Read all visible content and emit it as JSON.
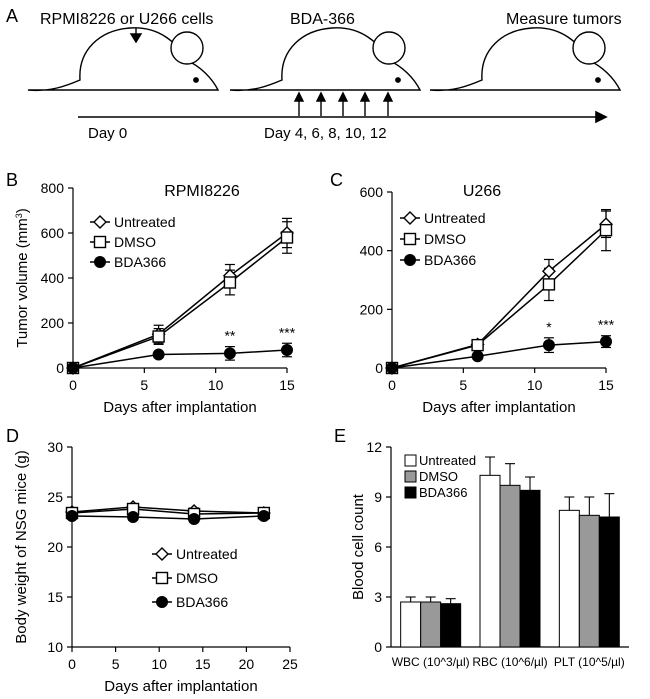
{
  "panel_labels": {
    "a": "A",
    "b": "B",
    "c": "C",
    "d": "D",
    "e": "E"
  },
  "schematic": {
    "step1": "RPMI8226 or U266 cells",
    "step2": "BDA-366",
    "step3": "Measure tumors",
    "day0": "Day 0",
    "injection_days": "Day 4, 6, 8, 10, 12"
  },
  "chart_data": [
    {
      "id": "B",
      "type": "line",
      "title": "RPMI8226",
      "xlabel": "Days after implantation",
      "ylabel": "Tumor volume (mm³)",
      "xlim": [
        0,
        15
      ],
      "ylim": [
        0,
        800
      ],
      "xticks": [
        0,
        5,
        10,
        15
      ],
      "yticks": [
        0,
        200,
        400,
        600,
        800
      ],
      "x": [
        0,
        6,
        11,
        15
      ],
      "series": [
        {
          "name": "Untreated",
          "marker": "diamond-open",
          "values": [
            0,
            150,
            410,
            600
          ],
          "errors": [
            0,
            40,
            50,
            65
          ]
        },
        {
          "name": "DMSO",
          "marker": "square-open",
          "values": [
            0,
            140,
            380,
            580
          ],
          "errors": [
            0,
            35,
            55,
            70
          ]
        },
        {
          "name": "BDA366",
          "marker": "circle-filled",
          "values": [
            0,
            60,
            65,
            80
          ],
          "errors": [
            0,
            10,
            30,
            30
          ]
        }
      ],
      "annotations": [
        {
          "x": 11,
          "text": "**"
        },
        {
          "x": 15,
          "text": "***"
        }
      ]
    },
    {
      "id": "C",
      "type": "line",
      "title": "U266",
      "xlabel": "Days after implantation",
      "ylabel": "",
      "xlim": [
        0,
        15
      ],
      "ylim": [
        0,
        600
      ],
      "xticks": [
        0,
        5,
        10,
        15
      ],
      "yticks": [
        0,
        200,
        400,
        600
      ],
      "x": [
        0,
        6,
        11,
        15
      ],
      "series": [
        {
          "name": "Untreated",
          "marker": "diamond-open",
          "values": [
            0,
            80,
            330,
            490
          ],
          "errors": [
            0,
            15,
            40,
            45
          ]
        },
        {
          "name": "DMSO",
          "marker": "square-open",
          "values": [
            0,
            78,
            285,
            470
          ],
          "errors": [
            0,
            15,
            55,
            70
          ]
        },
        {
          "name": "BDA366",
          "marker": "circle-filled",
          "values": [
            0,
            40,
            78,
            90
          ],
          "errors": [
            0,
            10,
            25,
            20
          ]
        }
      ],
      "annotations": [
        {
          "x": 11,
          "text": "*"
        },
        {
          "x": 15,
          "text": "***"
        }
      ]
    },
    {
      "id": "D",
      "type": "line",
      "title": "",
      "xlabel": "Days after implantation",
      "ylabel": "Body weight of NSG mice (g)",
      "xlim": [
        0,
        25
      ],
      "ylim": [
        10,
        30
      ],
      "xticks": [
        0,
        5,
        10,
        15,
        20,
        25
      ],
      "yticks": [
        10,
        15,
        20,
        25,
        30
      ],
      "x": [
        0,
        7,
        14,
        22
      ],
      "series": [
        {
          "name": "Untreated",
          "marker": "diamond-open",
          "values": [
            23.5,
            24.0,
            23.6,
            23.4
          ],
          "errors": [
            0.3,
            0.3,
            0.3,
            0.3
          ]
        },
        {
          "name": "DMSO",
          "marker": "square-open",
          "values": [
            23.4,
            23.8,
            23.3,
            23.4
          ],
          "errors": [
            0.3,
            0.3,
            0.3,
            0.3
          ]
        },
        {
          "name": "BDA366",
          "marker": "circle-filled",
          "values": [
            23.1,
            23.0,
            22.8,
            23.1
          ],
          "errors": [
            0.3,
            0.3,
            0.3,
            0.3
          ]
        }
      ],
      "annotations": []
    },
    {
      "id": "E",
      "type": "bar",
      "title": "",
      "xlabel": "",
      "ylabel": "Blood cell count",
      "ylim": [
        0,
        12
      ],
      "yticks": [
        0,
        3,
        6,
        9,
        12
      ],
      "categories": [
        "WBC (10^3/µl)",
        "RBC (10^6/µl)",
        "PLT (10^5/µl)"
      ],
      "series": [
        {
          "name": "Untreated",
          "color": "#ffffff",
          "values": [
            2.7,
            10.3,
            8.2
          ],
          "errors": [
            0.3,
            1.1,
            0.8
          ]
        },
        {
          "name": "DMSO",
          "color": "#999999",
          "values": [
            2.7,
            9.7,
            7.9
          ],
          "errors": [
            0.3,
            1.3,
            1.1
          ]
        },
        {
          "name": "BDA366",
          "color": "#000000",
          "values": [
            2.6,
            9.4,
            7.8
          ],
          "errors": [
            0.3,
            0.8,
            1.4
          ]
        }
      ]
    }
  ]
}
